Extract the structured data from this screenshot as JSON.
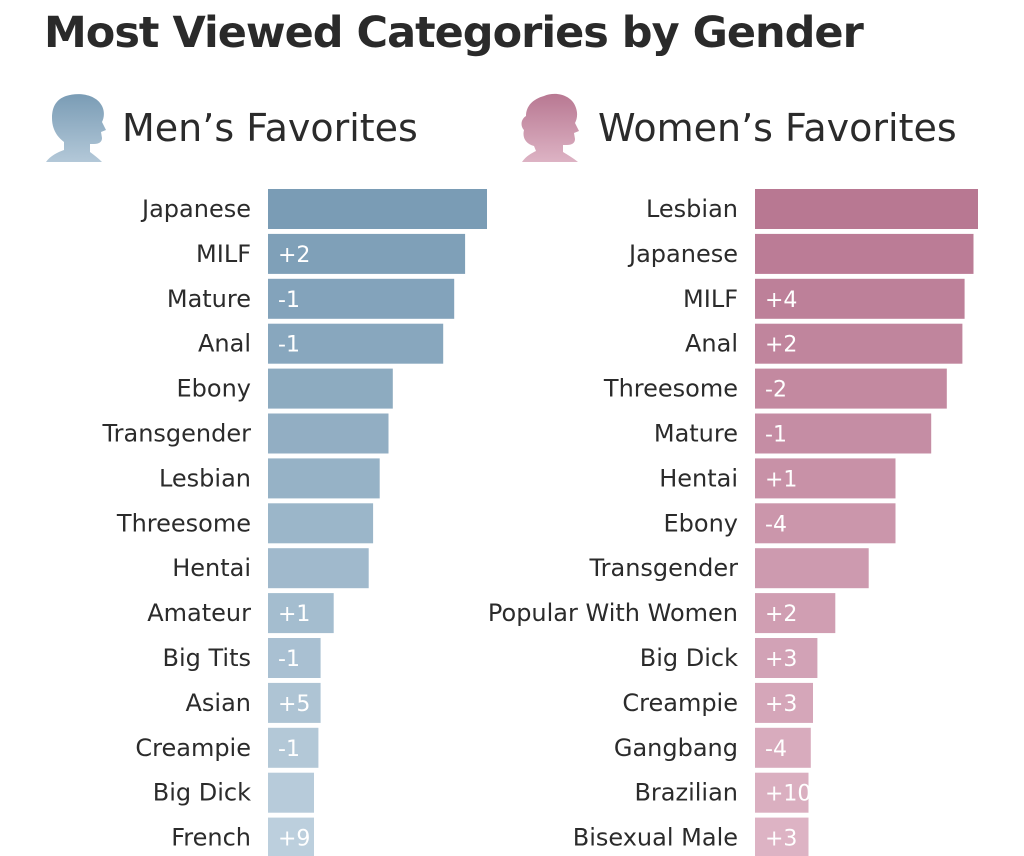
{
  "title": "Most Viewed Categories by Gender",
  "icons": {
    "men": "male-head-silhouette-icon",
    "women": "female-head-silhouette-icon"
  },
  "colors": {
    "men_top": "#7a9cb5",
    "men_bottom": "#bccfdd",
    "women_top": "#b87892",
    "women_bottom": "#ddb3c4",
    "label_on_bar": "#ffffff"
  },
  "chart_data": [
    {
      "type": "bar",
      "orientation": "horizontal",
      "title": "Men’s Favorites",
      "categories": [
        "Japanese",
        "MILF",
        "Mature",
        "Anal",
        "Ebony",
        "Transgender",
        "Lesbian",
        "Threesome",
        "Hentai",
        "Amateur",
        "Big Tits",
        "Asian",
        "Creampie",
        "Big Dick",
        "French"
      ],
      "values": [
        100,
        90,
        85,
        80,
        57,
        55,
        51,
        48,
        46,
        30,
        24,
        24,
        23,
        21,
        21
      ],
      "rank_change": [
        "",
        "+2",
        "-1",
        "-1",
        "",
        "",
        "",
        "",
        "",
        "+1",
        "-1",
        "+5",
        "-1",
        "",
        "+9"
      ],
      "xlim": [
        0,
        100
      ],
      "grid": false,
      "legend": "none"
    },
    {
      "type": "bar",
      "orientation": "horizontal",
      "title": "Women’s Favorites",
      "categories": [
        "Lesbian",
        "Japanese",
        "MILF",
        "Anal",
        "Threesome",
        "Mature",
        "Hentai",
        "Ebony",
        "Transgender",
        "Popular With Women",
        "Big Dick",
        "Creampie",
        "Gangbang",
        "Brazilian",
        "Bisexual Male"
      ],
      "values": [
        100,
        98,
        94,
        93,
        86,
        79,
        63,
        63,
        51,
        36,
        28,
        26,
        25,
        24,
        24
      ],
      "rank_change": [
        "",
        "",
        "+4",
        "+2",
        "-2",
        "-1",
        "+1",
        "-4",
        "",
        "+2",
        "+3",
        "+3",
        "-4",
        "+10",
        "+3"
      ],
      "xlim": [
        0,
        100
      ],
      "grid": false,
      "legend": "none"
    }
  ]
}
